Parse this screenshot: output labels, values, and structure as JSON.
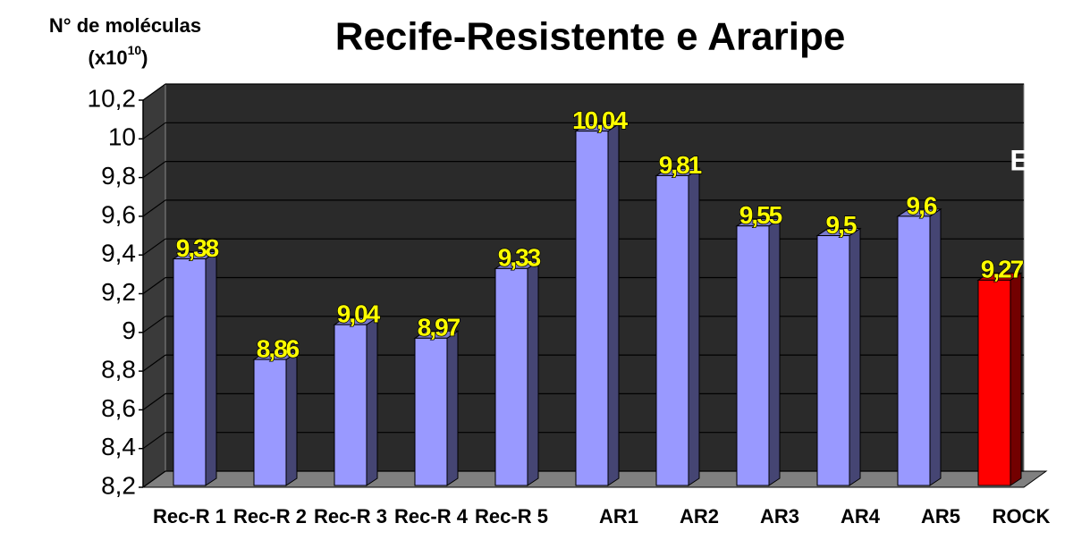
{
  "chart_data": {
    "type": "bar",
    "title": "Recife-Resistente e Araripe",
    "ylabel": "N° de moléculas",
    "ylabel_unit": [
      "(x10",
      "10",
      ")"
    ],
    "annotation": "E",
    "categories": [
      "Rec-R 1",
      "Rec-R 2",
      "Rec-R 3",
      "Rec-R 4",
      "Rec-R 5",
      "AR1",
      "AR2",
      "AR3",
      "AR4",
      "AR5",
      "ROCK"
    ],
    "values": [
      9.38,
      8.86,
      9.04,
      8.97,
      9.33,
      10.04,
      9.81,
      9.55,
      9.5,
      9.6,
      9.27
    ],
    "value_labels": [
      "9,38",
      "8,86",
      "9,04",
      "8,97",
      "9,33",
      "10,04",
      "9,81",
      "9,55",
      "9,5",
      "9,6",
      "9,27"
    ],
    "colors": [
      "#9999ff",
      "#9999ff",
      "#9999ff",
      "#9999ff",
      "#9999ff",
      "#9999ff",
      "#9999ff",
      "#9999ff",
      "#9999ff",
      "#9999ff",
      "#ff0000"
    ],
    "ylim": [
      8.2,
      10.2
    ],
    "yticks": [
      {
        "value": 8.2,
        "label": "8,2"
      },
      {
        "value": 8.4,
        "label": "8,4"
      },
      {
        "value": 8.6,
        "label": "8,6"
      },
      {
        "value": 8.8,
        "label": "8,8"
      },
      9,
      {
        "value": 9.2,
        "label": "9,2"
      },
      {
        "value": 9.4,
        "label": "9,4"
      },
      {
        "value": 9.6,
        "label": "9,6"
      },
      {
        "value": 9.8,
        "label": "9,8"
      },
      10,
      {
        "value": 10.2,
        "label": "10,2"
      }
    ],
    "grid": true
  }
}
